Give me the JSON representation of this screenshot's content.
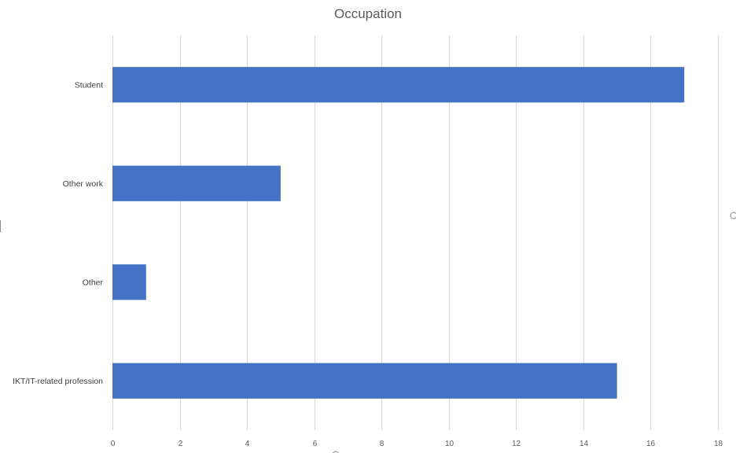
{
  "chart_data": {
    "type": "bar",
    "orientation": "horizontal",
    "title": "Occupation",
    "xlabel": "",
    "ylabel": "",
    "categories": [
      "Student",
      "Other work",
      "Other",
      "IKT/IT-related profession"
    ],
    "values": [
      17,
      5,
      1,
      15
    ],
    "xlim": [
      0,
      18
    ],
    "xticks": [
      0,
      2,
      4,
      6,
      8,
      10,
      12,
      14,
      16,
      18
    ],
    "grid": true,
    "legend": "none",
    "bar_color": "#4472C4"
  }
}
